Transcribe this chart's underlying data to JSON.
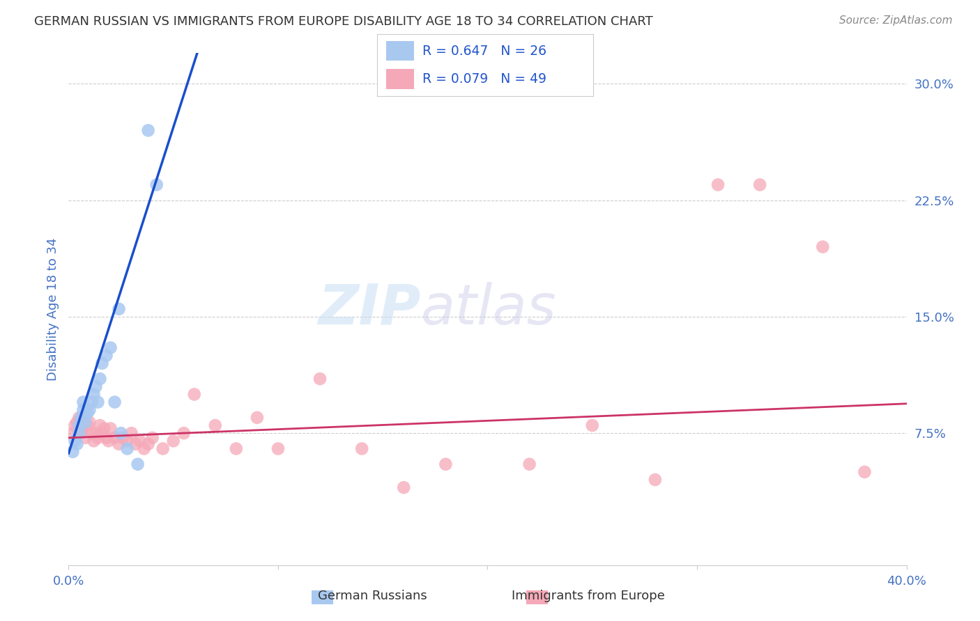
{
  "title": "GERMAN RUSSIAN VS IMMIGRANTS FROM EUROPE DISABILITY AGE 18 TO 34 CORRELATION CHART",
  "source": "Source: ZipAtlas.com",
  "ylabel": "Disability Age 18 to 34",
  "xlim": [
    0.0,
    0.4
  ],
  "ylim": [
    -0.01,
    0.32
  ],
  "R_blue": 0.647,
  "N_blue": 26,
  "R_pink": 0.079,
  "N_pink": 49,
  "legend_label_blue": "German Russians",
  "legend_label_pink": "Immigrants from Europe",
  "watermark_zip": "ZIP",
  "watermark_atlas": "atlas",
  "blue_scatter_x": [
    0.002,
    0.003,
    0.004,
    0.005,
    0.005,
    0.006,
    0.007,
    0.007,
    0.008,
    0.009,
    0.01,
    0.011,
    0.012,
    0.013,
    0.014,
    0.015,
    0.016,
    0.018,
    0.02,
    0.022,
    0.024,
    0.025,
    0.028,
    0.033,
    0.038,
    0.042
  ],
  "blue_scatter_y": [
    0.063,
    0.07,
    0.068,
    0.075,
    0.08,
    0.085,
    0.09,
    0.095,
    0.082,
    0.088,
    0.09,
    0.095,
    0.1,
    0.105,
    0.095,
    0.11,
    0.12,
    0.125,
    0.13,
    0.095,
    0.155,
    0.075,
    0.065,
    0.055,
    0.27,
    0.235
  ],
  "pink_scatter_x": [
    0.002,
    0.003,
    0.004,
    0.005,
    0.006,
    0.007,
    0.007,
    0.008,
    0.009,
    0.01,
    0.011,
    0.012,
    0.013,
    0.014,
    0.015,
    0.016,
    0.017,
    0.018,
    0.019,
    0.02,
    0.022,
    0.024,
    0.026,
    0.028,
    0.03,
    0.032,
    0.034,
    0.036,
    0.038,
    0.04,
    0.045,
    0.05,
    0.055,
    0.06,
    0.07,
    0.08,
    0.09,
    0.1,
    0.12,
    0.14,
    0.16,
    0.18,
    0.22,
    0.25,
    0.28,
    0.31,
    0.33,
    0.36,
    0.38
  ],
  "pink_scatter_y": [
    0.075,
    0.08,
    0.082,
    0.085,
    0.075,
    0.078,
    0.08,
    0.072,
    0.08,
    0.082,
    0.075,
    0.07,
    0.075,
    0.072,
    0.08,
    0.075,
    0.078,
    0.072,
    0.07,
    0.078,
    0.072,
    0.068,
    0.072,
    0.07,
    0.075,
    0.068,
    0.07,
    0.065,
    0.068,
    0.072,
    0.065,
    0.07,
    0.075,
    0.1,
    0.08,
    0.065,
    0.085,
    0.065,
    0.11,
    0.065,
    0.04,
    0.055,
    0.055,
    0.08,
    0.045,
    0.235,
    0.235,
    0.195,
    0.05
  ],
  "blue_color": "#a8c8f0",
  "blue_line_color": "#1a4fcc",
  "pink_color": "#f5a8b8",
  "pink_line_color": "#cc3366",
  "background_color": "#ffffff",
  "grid_color": "#cccccc",
  "title_color": "#333333",
  "tick_label_color": "#4472c4",
  "blue_line_x_end": 0.065,
  "blue_slope": 4.2,
  "blue_intercept": 0.062,
  "pink_slope": 0.055,
  "pink_intercept": 0.072
}
